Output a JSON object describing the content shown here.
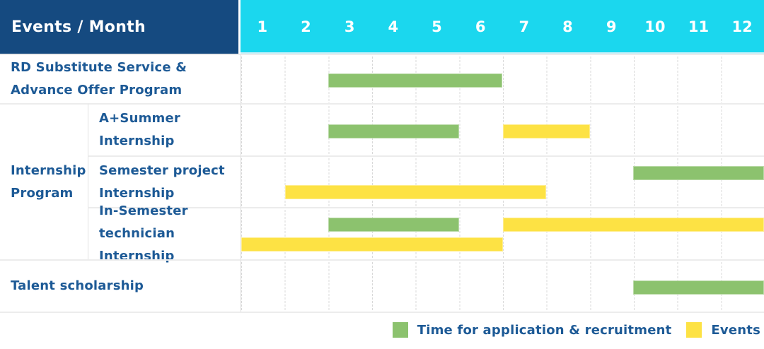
{
  "header": {
    "title": "Events / Month",
    "months": [
      "1",
      "2",
      "3",
      "4",
      "5",
      "6",
      "7",
      "8",
      "9",
      "10",
      "11",
      "12"
    ]
  },
  "colors": {
    "header_label_bg": "#154a80",
    "header_months_bg": "#1bd7ee",
    "label_text": "#1d5a96",
    "application_green": "#8cc26e",
    "events_yellow": "#fde244"
  },
  "group_cell": {
    "label_lines": [
      "Internship",
      "Program"
    ]
  },
  "chart_data": {
    "type": "gantt",
    "x_unit": "month",
    "x_range": [
      1,
      12
    ],
    "x_ticks": [
      1,
      2,
      3,
      4,
      5,
      6,
      7,
      8,
      9,
      10,
      11,
      12
    ],
    "grid": true,
    "legend_position": "bottom-right",
    "series_legend": [
      {
        "key": "application",
        "label": "Time for application & recruitment",
        "color": "#8cc26e"
      },
      {
        "key": "events",
        "label": "Events",
        "color": "#fde244"
      }
    ],
    "rows": [
      {
        "group": "",
        "label_lines": [
          "RD Substitute Service &",
          "Advance Offer Program"
        ],
        "bars": [
          {
            "series": "application",
            "start_month": 3,
            "end_month": 6,
            "lane": "center"
          }
        ]
      },
      {
        "group": "Internship Program",
        "label_lines": [
          "A+Summer",
          "Internship"
        ],
        "bars": [
          {
            "series": "application",
            "start_month": 3,
            "end_month": 5,
            "lane": "center"
          },
          {
            "series": "events",
            "start_month": 7,
            "end_month": 8,
            "lane": "center"
          }
        ]
      },
      {
        "group": "Internship Program",
        "label_lines": [
          "Semester project",
          "Internship"
        ],
        "bars": [
          {
            "series": "application",
            "start_month": 10,
            "end_month": 12,
            "lane": "top"
          },
          {
            "series": "events",
            "start_month": 2,
            "end_month": 7,
            "lane": "bottom"
          }
        ]
      },
      {
        "group": "Internship Program",
        "label_lines": [
          "In-Semester",
          "technician Internship"
        ],
        "bars": [
          {
            "series": "application",
            "start_month": 3,
            "end_month": 5,
            "lane": "top"
          },
          {
            "series": "events",
            "start_month": 7,
            "end_month": 12,
            "lane": "top"
          },
          {
            "series": "events",
            "start_month": 1,
            "end_month": 6,
            "lane": "bottom"
          }
        ]
      },
      {
        "group": "",
        "label_lines": [
          "Talent scholarship"
        ],
        "bars": [
          {
            "series": "application",
            "start_month": 10,
            "end_month": 12,
            "lane": "center"
          }
        ]
      }
    ]
  },
  "legend": {
    "items": [
      {
        "series": "application",
        "label": "Time for application & recruitment"
      },
      {
        "series": "events",
        "label": "Events"
      }
    ]
  }
}
